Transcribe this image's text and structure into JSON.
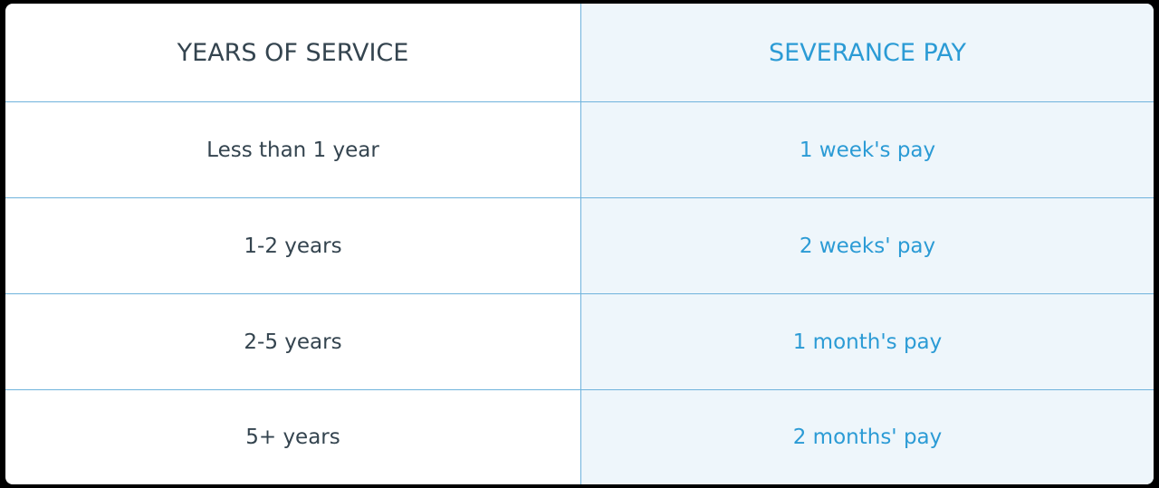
{
  "table": {
    "header": [
      "YEARS OF SERVICE",
      "SEVERANCE PAY"
    ],
    "rows": [
      [
        "Less than 1 year",
        "1 week's pay"
      ],
      [
        "1-2 years",
        "2 weeks' pay"
      ],
      [
        "2-5 years",
        "1 month's pay"
      ],
      [
        "5+ years",
        "2 months' pay"
      ]
    ]
  }
}
